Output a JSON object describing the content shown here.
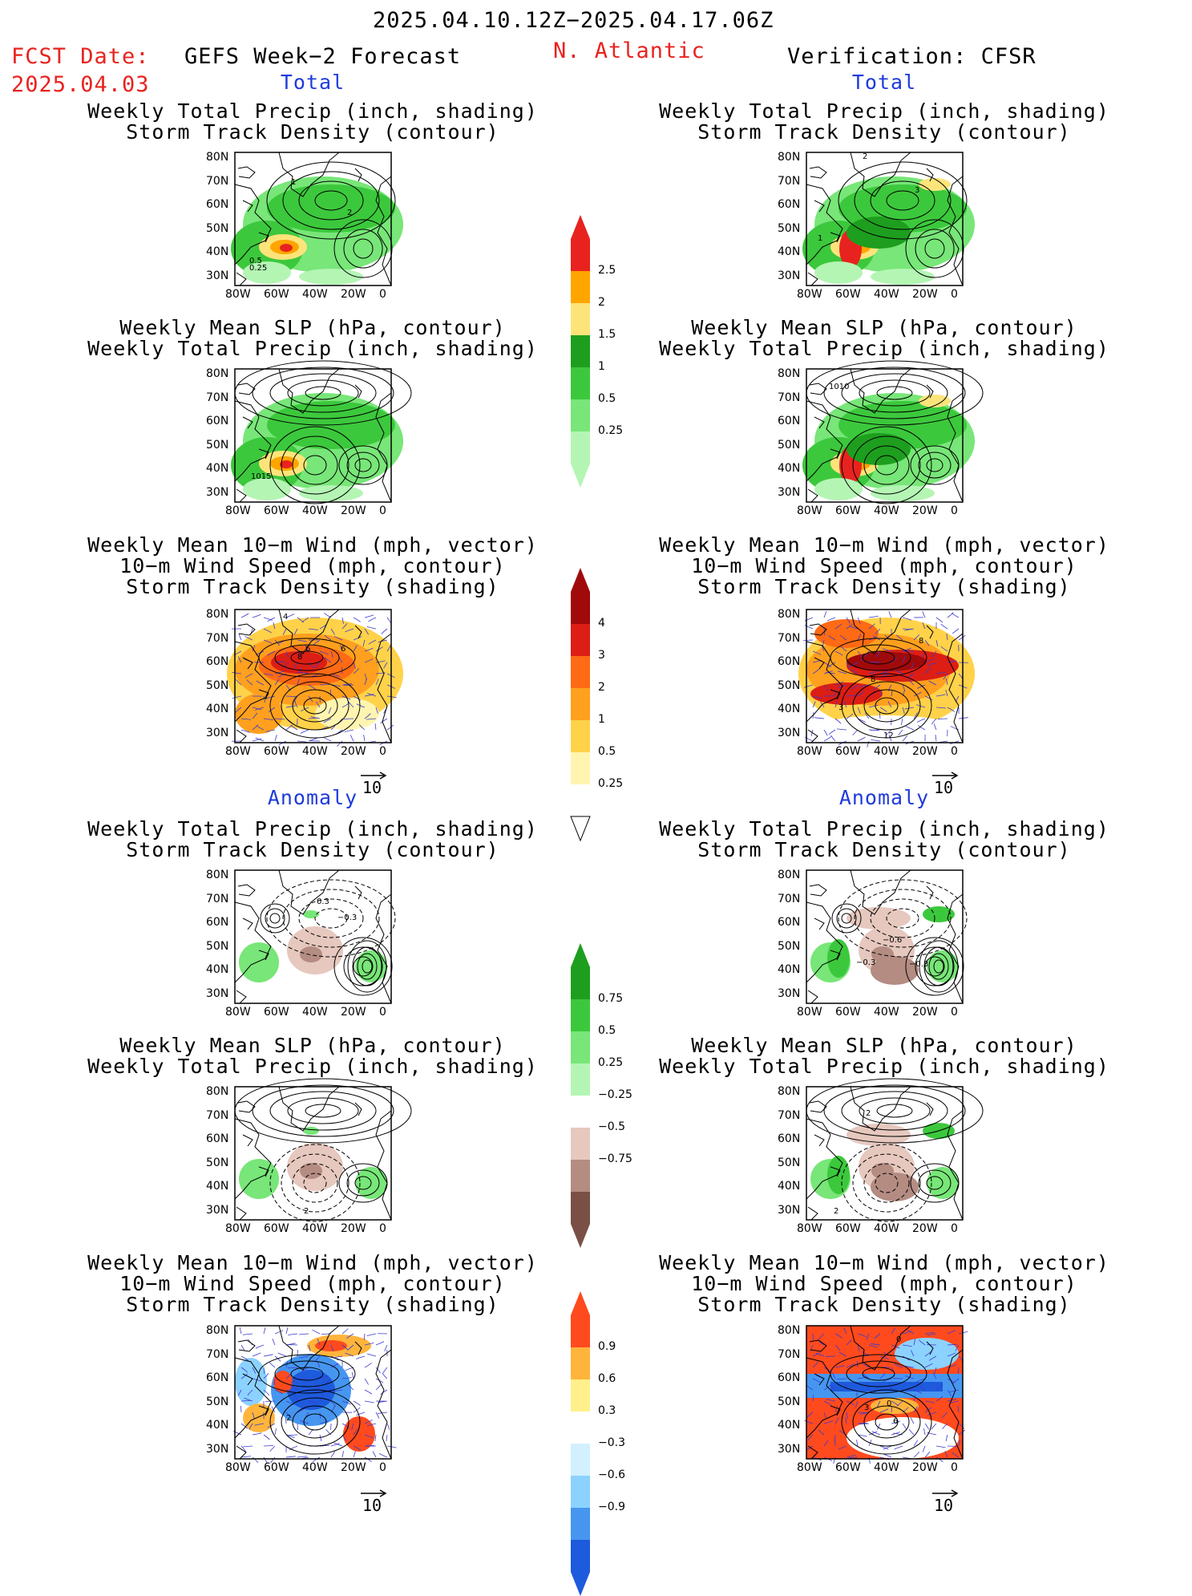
{
  "header": {
    "period": "2025.04.10.12Z−2025.04.17.06Z",
    "fcst_label": "FCST Date:",
    "fcst_date": "2025.04.03",
    "model": "GEFS Week−2 Forecast",
    "region": "N. Atlantic",
    "verification": "Verification: CFSR"
  },
  "sections": {
    "total": "Total",
    "anomaly": "Anomaly"
  },
  "titles": {
    "precip_track": [
      "Weekly Total Precip (inch, shading)",
      "Storm Track Density (contour)"
    ],
    "slp_precip": [
      "Weekly Mean SLP (hPa, contour)",
      "Weekly Total Precip (inch, shading)"
    ],
    "wind_track": [
      "Weekly Mean 10−m Wind (mph, vector)",
      "10−m Wind Speed (mph, contour)",
      "Storm Track Density (shading)"
    ]
  },
  "axes": {
    "lat_ticks": [
      "80N",
      "70N",
      "60N",
      "50N",
      "40N",
      "30N"
    ],
    "lon_ticks": [
      "80W",
      "60W",
      "40W",
      "20W",
      "0"
    ]
  },
  "vector_ref": "10",
  "colorbars": {
    "precip_total": [
      "2.5",
      "2",
      "1.5",
      "1",
      "0.5",
      "0.25"
    ],
    "track_total": [
      "4",
      "3",
      "2",
      "1",
      "0.5",
      "0.25"
    ],
    "precip_anom": [
      "0.75",
      "0.5",
      "0.25",
      "−0.25",
      "−0.5",
      "−0.75"
    ],
    "track_anom": [
      "0.9",
      "0.6",
      "0.3",
      "−0.3",
      "−0.6",
      "−0.9"
    ]
  },
  "contour_labels": {
    "fc_track_total": [
      "1",
      "2",
      "0.5",
      "0.25"
    ],
    "cfsr_track_total": [
      "2",
      "3",
      "1"
    ],
    "fc_slp_total": [
      "1015"
    ],
    "cfsr_slp_total": [
      "1010"
    ],
    "fc_wind_total": [
      "4",
      "6",
      "6",
      "8"
    ],
    "cfsr_wind_total": [
      "8",
      "8",
      "3",
      "12"
    ],
    "fc_track_anom": [
      "0.3",
      "−0.3"
    ],
    "cfsr_track_anom": [
      "−0.6",
      "−0.3",
      "−0.3"
    ],
    "fc_slp_anom": [
      "2"
    ],
    "cfsr_slp_anom": [
      "2",
      "2"
    ],
    "fc_wind_anom": [
      "2"
    ],
    "cfsr_wind_anom": [
      "0",
      "0",
      "3",
      "6"
    ]
  },
  "colors": {
    "title_red": "#e8231f",
    "section_blue": "#1f3bdc",
    "precip": [
      "#b4f5b4",
      "#78e678",
      "#3cc83c",
      "#1e9e1e",
      "#fde47a",
      "#ffa500",
      "#e8231f"
    ],
    "track": [
      "#fff5b0",
      "#ffd24a",
      "#ffa01e",
      "#ff6a14",
      "#dc1e14",
      "#a00a0a"
    ],
    "brown": [
      "#e6c8be",
      "#b48c82",
      "#7a5046"
    ],
    "anom_red": [
      "#fff08c",
      "#ffb43c",
      "#ff4a1e"
    ],
    "anom_blue": [
      "#d2f0ff",
      "#8cd2ff",
      "#4696f0",
      "#1e5adc"
    ]
  }
}
